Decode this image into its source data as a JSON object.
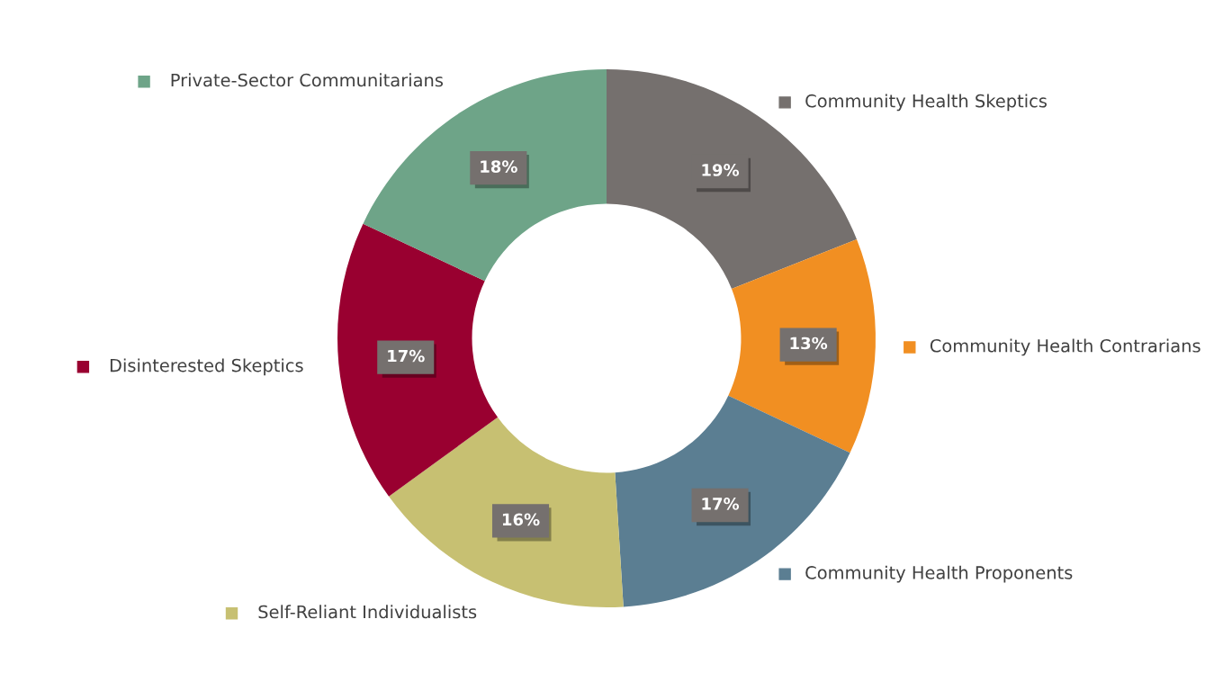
{
  "chart_data": {
    "type": "donut",
    "categories": [
      "Community Health Skeptics",
      "Community Health Contrarians",
      "Community Health Proponents",
      "Self-Reliant Individualists",
      "Disinterested Skeptics",
      "Private-Sector Communitarians"
    ],
    "values": [
      19,
      13,
      17,
      16,
      17,
      18
    ],
    "colors": [
      "#75706e",
      "#f18f22",
      "#5b7e92",
      "#c7c072",
      "#990030",
      "#6ea488"
    ],
    "value_labels": [
      "19%",
      "13%",
      "17%",
      "16%",
      "17%",
      "18%"
    ],
    "legend": "bottom right"
  }
}
